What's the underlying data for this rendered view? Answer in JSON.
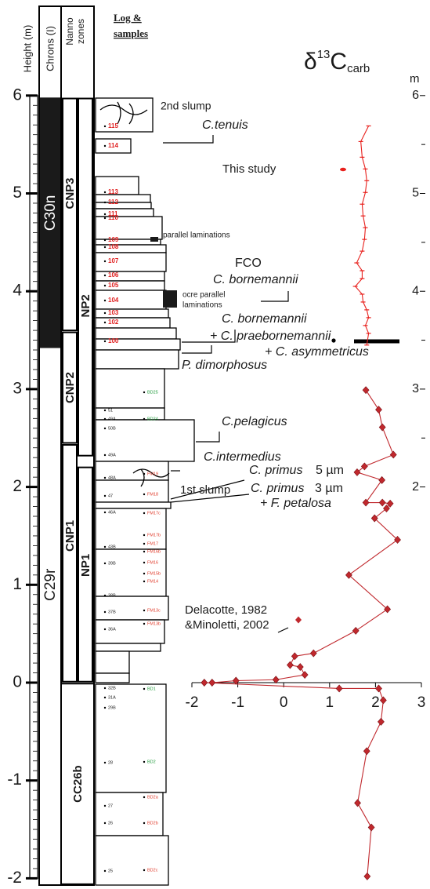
{
  "header": {
    "height": "Height (m)",
    "chrons": "Chrons (I)",
    "nanno": [
      "Nanno",
      "zones"
    ],
    "log": [
      "Log &",
      "samples"
    ]
  },
  "height_axis": {
    "ticks": [
      -2,
      -1,
      0,
      1,
      2,
      3,
      4,
      5,
      6
    ]
  },
  "chrons": [
    "C30n",
    "C29r"
  ],
  "nanno_zones": [
    "CNP3",
    "CNP2",
    "CNP1",
    "NP2",
    "NP1",
    "CC26b"
  ],
  "samples": {
    "red": [
      "115",
      "114",
      "113",
      "112",
      "111",
      "110",
      "109",
      "108",
      "107",
      "106",
      "105",
      "104",
      "103",
      "102",
      "100"
    ],
    "black": [
      "51",
      "49A",
      "50B",
      "49A",
      "48A",
      "47",
      "46A",
      "43B",
      "39B",
      "38B",
      "37B",
      "36A",
      "32B",
      "31A",
      "29B",
      "28",
      "27",
      "26",
      "25"
    ],
    "green": [
      "BD25",
      "BD24",
      "BD1",
      "BD2"
    ],
    "orange": [
      "FM19",
      "FM18",
      "FM17c",
      "FM17b",
      "FM17",
      "FM16b",
      "FM16",
      "FM15b",
      "FM14",
      "FM13c",
      "FM13b",
      "BD2a",
      "BD2b",
      "BD2c"
    ]
  },
  "annotations": [
    "2nd slump",
    "C.tenuis",
    "parallel laminations",
    "FCO",
    "C. bornemannii",
    "ocre parallel",
    "laminations",
    "C. bornemannii",
    "+ C. praebornemannii",
    "+ C. asymmetricus",
    "P. dimorphosus",
    "C.pelagicus",
    "C.intermedius",
    "1st slump",
    "C. primus",
    "5 µm",
    "C. primus",
    "3 µm",
    "+ F. petalosa"
  ],
  "chart_data": {
    "type": "line",
    "title": [
      "δ",
      "13",
      "C",
      "carb"
    ],
    "y2label": "m",
    "xlim": [
      -2,
      3
    ],
    "xticks": [
      -2,
      -1,
      0,
      1,
      2,
      3
    ],
    "ylim": [
      -2,
      6
    ],
    "y2ticks": [
      2,
      3,
      4,
      5,
      6
    ],
    "series": [
      {
        "name": "This study",
        "color": "#e8201c",
        "height": [
          5.69,
          5.53,
          5.37,
          5.25,
          5.13,
          5.01,
          4.89,
          4.77,
          4.65,
          4.53,
          4.41,
          4.29,
          4.21,
          4.13,
          4.05,
          3.97,
          3.89,
          3.81,
          3.73,
          3.65,
          3.57,
          3.45
        ],
        "values": [
          1.85,
          1.68,
          1.71,
          1.78,
          1.81,
          1.78,
          1.71,
          1.73,
          1.78,
          1.76,
          1.71,
          1.59,
          1.71,
          1.71,
          1.56,
          1.71,
          1.73,
          1.81,
          1.85,
          1.78,
          1.85,
          1.81
        ]
      },
      {
        "name": "Delacotte, 1982 &Minoletti, 2002",
        "color": "#c0282d",
        "height": [
          2.99,
          2.79,
          2.61,
          2.33,
          2.21,
          2.15,
          2.07,
          1.84,
          1.84,
          1.83,
          1.78,
          1.68,
          1.46,
          1.1,
          0.75,
          0.53,
          0.3,
          0.27,
          0.18,
          0.16,
          0.08,
          0.03,
          0.02,
          0,
          0,
          -0.06,
          -0.06,
          -0.18,
          -0.4,
          -0.7,
          -1.23,
          -1.48,
          -1.98
        ],
        "values": [
          1.79,
          2.07,
          2.15,
          2.39,
          1.76,
          1.6,
          2.14,
          1.79,
          2.15,
          2.32,
          2.24,
          1.98,
          2.48,
          1.42,
          2.26,
          1.57,
          0.65,
          0.24,
          0.14,
          0.36,
          0.46,
          -0.17,
          -1.04,
          -1.56,
          -1.73,
          1.21,
          2.07,
          2.17,
          2.12,
          1.81,
          1.61,
          1.91,
          1.82
        ]
      }
    ]
  }
}
